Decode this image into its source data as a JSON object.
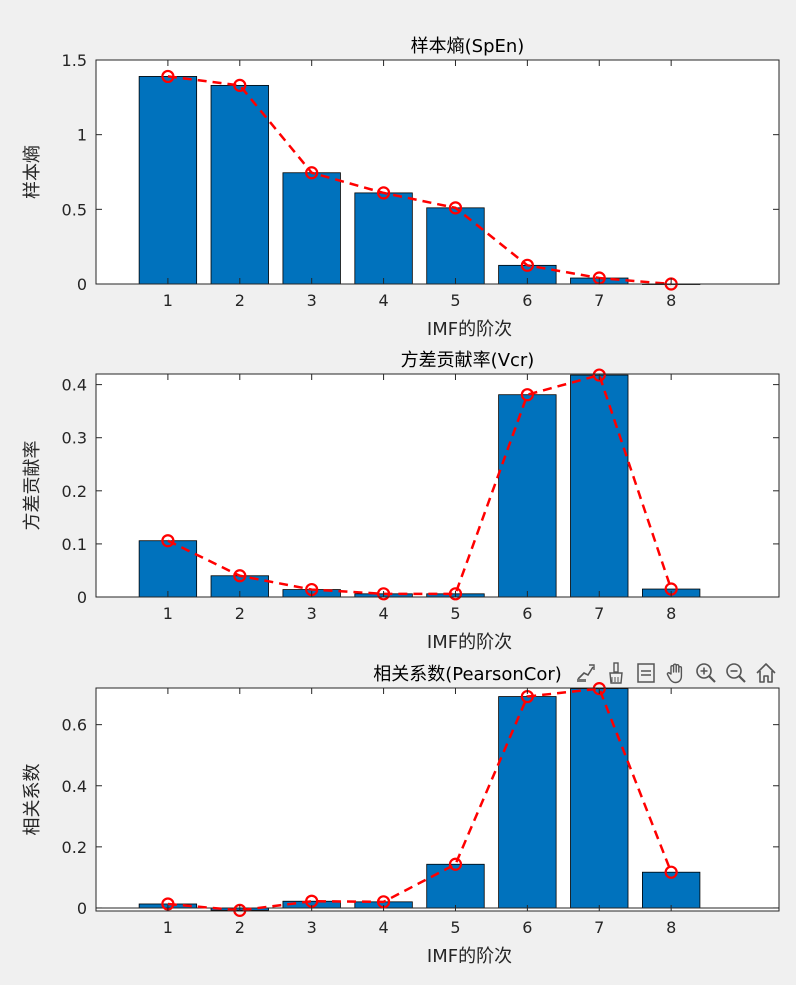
{
  "chart_data": [
    {
      "type": "bar",
      "title": "样本熵(SpEn)",
      "xlabel": "IMF的阶次",
      "ylabel": "样本熵",
      "categories": [
        "1",
        "2",
        "3",
        "4",
        "5",
        "6",
        "7",
        "8"
      ],
      "values": [
        1.39,
        1.33,
        0.745,
        0.61,
        0.51,
        0.125,
        0.04,
        0.0
      ],
      "xlim": [
        0,
        9.5
      ],
      "ylim": [
        0,
        1.5
      ],
      "yticks": [
        0,
        0.5,
        1,
        1.5
      ],
      "ytick_labels": [
        "0",
        "0.5",
        "1",
        "1.5"
      ],
      "grid": false,
      "overlay_line": {
        "style": "dashed",
        "marker": "circle",
        "color": "#ff0000",
        "values": [
          1.39,
          1.33,
          0.745,
          0.61,
          0.51,
          0.125,
          0.04,
          0.0
        ]
      }
    },
    {
      "type": "bar",
      "title": "方差贡献率(Vcr)",
      "xlabel": "IMF的阶次",
      "ylabel": "方差贡献率",
      "categories": [
        "1",
        "2",
        "3",
        "4",
        "5",
        "6",
        "7",
        "8"
      ],
      "values": [
        0.106,
        0.04,
        0.014,
        0.006,
        0.006,
        0.381,
        0.418,
        0.015
      ],
      "xlim": [
        0,
        9.5
      ],
      "ylim": [
        0,
        0.42
      ],
      "yticks": [
        0,
        0.1,
        0.2,
        0.3,
        0.4
      ],
      "ytick_labels": [
        "0",
        "0.1",
        "0.2",
        "0.3",
        "0.4"
      ],
      "grid": false,
      "overlay_line": {
        "style": "dashed",
        "marker": "circle",
        "color": "#ff0000",
        "values": [
          0.106,
          0.04,
          0.014,
          0.006,
          0.006,
          0.381,
          0.418,
          0.015
        ]
      }
    },
    {
      "type": "bar",
      "title": "相关系数(PearsonCor)",
      "xlabel": "IMF的阶次",
      "ylabel": "相关系数",
      "categories": [
        "1",
        "2",
        "3",
        "4",
        "5",
        "6",
        "7",
        "8"
      ],
      "values": [
        0.013,
        -0.008,
        0.022,
        0.02,
        0.143,
        0.692,
        0.718,
        0.117
      ],
      "xlim": [
        0,
        9.5
      ],
      "ylim": [
        -0.01,
        0.72
      ],
      "yticks": [
        0,
        0.2,
        0.4,
        0.6
      ],
      "ytick_labels": [
        "0",
        "0.2",
        "0.4",
        "0.6"
      ],
      "grid": false,
      "overlay_line": {
        "style": "dashed",
        "marker": "circle",
        "color": "#ff0000",
        "values": [
          0.013,
          -0.008,
          0.022,
          0.02,
          0.143,
          0.692,
          0.718,
          0.117
        ]
      }
    }
  ],
  "colors": {
    "bar_fill": "#0072bd",
    "line": "#ff0000",
    "background": "#f0f0f0",
    "axes_bg": "#ffffff"
  },
  "toolbar": {
    "icons": [
      "data-tips-icon",
      "brush-icon",
      "legend-icon",
      "pan-hand-icon",
      "zoom-in-icon",
      "zoom-out-icon",
      "home-icon"
    ]
  }
}
